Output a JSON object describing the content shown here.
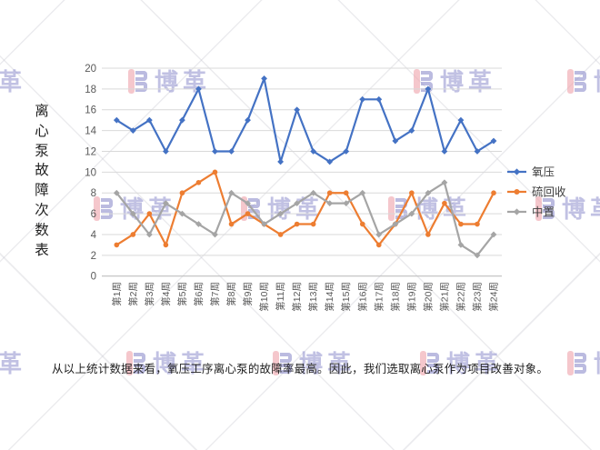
{
  "side_title": {
    "text": "离心泵故障次数表"
  },
  "caption": {
    "text": "从以上统计数据来看，氧压工序离心泵的故障率最高。因此，我们选取离心泵作为项目改善对象。"
  },
  "watermark": {
    "brand_text": "博革",
    "bar_color": "#f0a3ab",
    "glyph_color": "#8f8fcd",
    "text_color": "#9898d2"
  },
  "chart_data": {
    "type": "line",
    "title": "",
    "xlabel": "",
    "ylabel": "",
    "ylim": [
      0,
      20
    ],
    "ytick_step": 2,
    "grid": true,
    "legend_position": "right",
    "axis_label_color": "#595959",
    "gridline_color": "#D9D9D9",
    "axisline_color": "#BFBFBF",
    "categories": [
      "第1周",
      "第2周",
      "第3周",
      "第4周",
      "第5周",
      "第6周",
      "第7周",
      "第8周",
      "第9周",
      "第10周",
      "第11周",
      "第12周",
      "第13周",
      "第14周",
      "第15周",
      "第16周",
      "第17周",
      "第18周",
      "第19周",
      "第20周",
      "第21周",
      "第22周",
      "第23周",
      "第24周"
    ],
    "series": [
      {
        "name": "氧压",
        "color": "#4472C4",
        "marker": "diamond",
        "values": [
          15,
          14,
          15,
          12,
          15,
          18,
          12,
          12,
          15,
          19,
          11,
          16,
          12,
          11,
          12,
          17,
          17,
          13,
          14,
          18,
          12,
          15,
          12,
          13
        ]
      },
      {
        "name": "硫回收",
        "color": "#ED7D31",
        "marker": "circle",
        "values": [
          3,
          4,
          6,
          3,
          8,
          9,
          10,
          5,
          6,
          5,
          4,
          5,
          5,
          8,
          8,
          5,
          3,
          5,
          8,
          4,
          7,
          5,
          5,
          8
        ]
      },
      {
        "name": "中置",
        "color": "#A5A5A5",
        "marker": "diamond",
        "values": [
          8,
          6,
          4,
          7,
          6,
          5,
          4,
          8,
          7,
          5,
          6,
          7,
          8,
          7,
          7,
          8,
          4,
          5,
          6,
          8,
          9,
          3,
          2,
          4
        ]
      }
    ]
  }
}
